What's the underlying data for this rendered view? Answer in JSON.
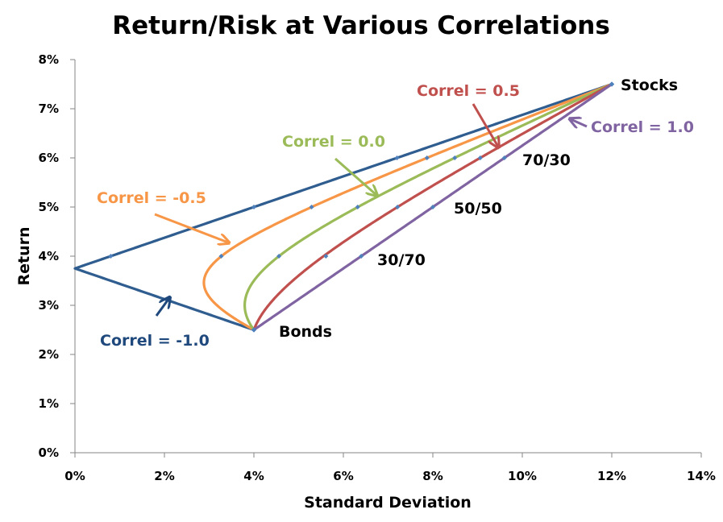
{
  "chart_data": {
    "type": "line",
    "title": "Return/Risk at Various Correlations",
    "xlabel": "Standard Deviation",
    "ylabel": "Return",
    "xlim": [
      0,
      14
    ],
    "ylim": [
      0,
      8
    ],
    "x_ticks": [
      "0%",
      "2%",
      "4%",
      "6%",
      "8%",
      "10%",
      "12%",
      "14%"
    ],
    "y_ticks": [
      "0%",
      "1%",
      "2%",
      "3%",
      "4%",
      "5%",
      "6%",
      "7%",
      "8%"
    ],
    "x_tick_values": [
      0,
      2,
      4,
      6,
      8,
      10,
      12,
      14
    ],
    "y_tick_values": [
      0,
      1,
      2,
      3,
      4,
      5,
      6,
      7,
      8
    ],
    "grid": false,
    "assets": {
      "stocks": {
        "label": "Stocks",
        "std": 12,
        "return": 7.5
      },
      "bonds": {
        "label": "Bonds",
        "std": 4,
        "return": 2.5
      }
    },
    "mixes": [
      {
        "label": "30/70",
        "stock_weight": 0.3,
        "return": 4.0
      },
      {
        "label": "50/50",
        "stock_weight": 0.5,
        "return": 5.0
      },
      {
        "label": "70/30",
        "stock_weight": 0.7,
        "return": 6.0
      }
    ],
    "series": [
      {
        "name": "Correl = -1.0",
        "correlation": -1.0,
        "color": "#2f5d8f",
        "label_color": "#1f497d",
        "markers": [
          {
            "x": 4.0,
            "y": 2.5
          },
          {
            "x": 0.8,
            "y": 4.0
          },
          {
            "x": 4.0,
            "y": 5.0
          },
          {
            "x": 7.2,
            "y": 6.0
          },
          {
            "x": 12.0,
            "y": 7.5
          }
        ]
      },
      {
        "name": "Correl = -0.5",
        "correlation": -0.5,
        "color": "#f79646",
        "label_color": "#f79646",
        "markers": [
          {
            "x": 4.0,
            "y": 2.5
          },
          {
            "x": 3.27,
            "y": 4.0
          },
          {
            "x": 5.29,
            "y": 5.0
          },
          {
            "x": 7.87,
            "y": 6.0
          },
          {
            "x": 12.0,
            "y": 7.5
          }
        ]
      },
      {
        "name": "Correl = 0.0",
        "correlation": 0.0,
        "color": "#9bbb59",
        "label_color": "#9bbb59",
        "markers": [
          {
            "x": 4.0,
            "y": 2.5
          },
          {
            "x": 4.56,
            "y": 4.0
          },
          {
            "x": 6.32,
            "y": 5.0
          },
          {
            "x": 8.49,
            "y": 6.0
          },
          {
            "x": 12.0,
            "y": 7.5
          }
        ]
      },
      {
        "name": "Correl = 0.5",
        "correlation": 0.5,
        "color": "#c0504d",
        "label_color": "#c0504d",
        "markers": [
          {
            "x": 4.0,
            "y": 2.5
          },
          {
            "x": 5.61,
            "y": 4.0
          },
          {
            "x": 7.21,
            "y": 5.0
          },
          {
            "x": 9.06,
            "y": 6.0
          },
          {
            "x": 12.0,
            "y": 7.5
          }
        ]
      },
      {
        "name": "Correl = 1.0",
        "correlation": 1.0,
        "color": "#8064a2",
        "label_color": "#8064a2",
        "markers": [
          {
            "x": 4.0,
            "y": 2.5
          },
          {
            "x": 6.4,
            "y": 4.0
          },
          {
            "x": 8.0,
            "y": 5.0
          },
          {
            "x": 9.6,
            "y": 6.0
          },
          {
            "x": 12.0,
            "y": 7.5
          }
        ]
      }
    ],
    "marker_color": "#4f81bd",
    "axis_color": "#868686"
  }
}
